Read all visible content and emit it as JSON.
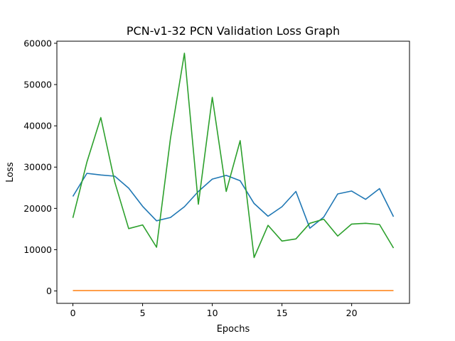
{
  "chart_data": {
    "type": "line",
    "title": "PCN-v1-32 PCN Validation Loss Graph",
    "xlabel": "Epochs",
    "ylabel": "Loss",
    "xlim": [
      -1.15,
      24.15
    ],
    "ylim": [
      -3000,
      60500
    ],
    "x_ticks": [
      0,
      5,
      10,
      15,
      20
    ],
    "y_ticks": [
      0,
      10000,
      20000,
      30000,
      40000,
      50000,
      60000
    ],
    "grid": false,
    "x": [
      0,
      1,
      2,
      3,
      4,
      5,
      6,
      7,
      8,
      9,
      10,
      11,
      12,
      13,
      14,
      15,
      16,
      17,
      18,
      19,
      20,
      21,
      22,
      23
    ],
    "series": [
      {
        "color": "#1f77b4",
        "values": [
          22900,
          28500,
          28100,
          27800,
          24900,
          20500,
          17000,
          17800,
          20400,
          24100,
          27100,
          28000,
          26700,
          21200,
          18100,
          20400,
          24100,
          15200,
          17900,
          23500,
          24200,
          22200,
          24800,
          18000
        ]
      },
      {
        "color": "#ff7f0e",
        "values": [
          100,
          100,
          100,
          100,
          100,
          100,
          100,
          100,
          100,
          100,
          100,
          100,
          100,
          100,
          100,
          100,
          100,
          100,
          100,
          100,
          100,
          100,
          100,
          100
        ]
      },
      {
        "color": "#2ca02c",
        "values": [
          17700,
          31200,
          42000,
          26400,
          15100,
          16000,
          10600,
          37000,
          57600,
          21000,
          46900,
          24100,
          36400,
          8100,
          15900,
          12100,
          12600,
          16400,
          17400,
          13300,
          16200,
          16400,
          16100,
          10400
        ]
      }
    ]
  }
}
